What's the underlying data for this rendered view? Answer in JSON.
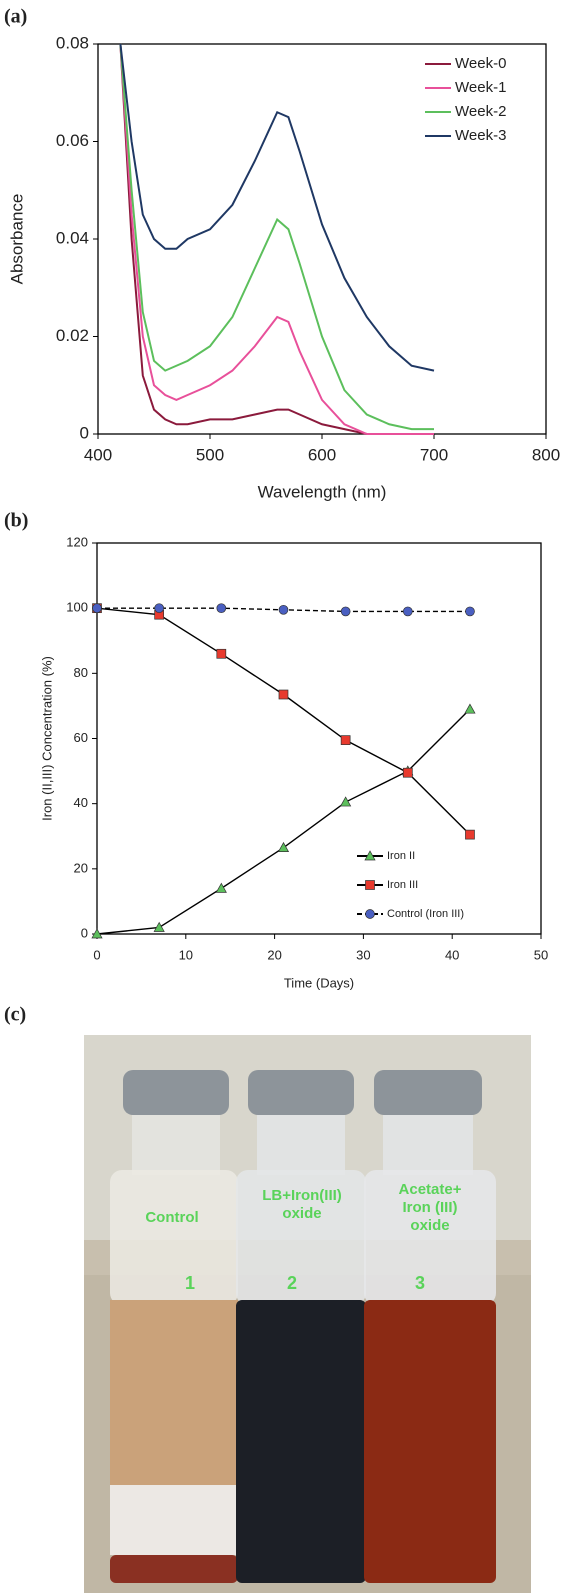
{
  "panel_labels": [
    "(a)",
    "(b)",
    "(c)"
  ],
  "chart_data": [
    {
      "type": "line",
      "xlabel": "Wavelength (nm)",
      "ylabel": "Absorbance",
      "x": [
        420,
        430,
        440,
        450,
        460,
        470,
        480,
        500,
        520,
        540,
        560,
        570,
        580,
        600,
        620,
        640,
        660,
        680,
        700
      ],
      "series": [
        {
          "name": "Week-0",
          "color": "#8b1a3c",
          "values": [
            0.08,
            0.04,
            0.012,
            0.005,
            0.003,
            0.002,
            0.002,
            0.003,
            0.003,
            0.004,
            0.005,
            0.005,
            0.004,
            0.002,
            0.001,
            0,
            0,
            0,
            0
          ]
        },
        {
          "name": "Week-1",
          "color": "#e8509a",
          "values": [
            0.08,
            0.045,
            0.02,
            0.01,
            0.008,
            0.007,
            0.008,
            0.01,
            0.013,
            0.018,
            0.024,
            0.023,
            0.017,
            0.007,
            0.002,
            0,
            0,
            0,
            0
          ]
        },
        {
          "name": "Week-2",
          "color": "#5cbf5c",
          "values": [
            0.08,
            0.05,
            0.025,
            0.015,
            0.013,
            0.014,
            0.015,
            0.018,
            0.024,
            0.034,
            0.044,
            0.042,
            0.035,
            0.02,
            0.009,
            0.004,
            0.002,
            0.001,
            0.001
          ]
        },
        {
          "name": "Week-3",
          "color": "#1f3864",
          "values": [
            0.08,
            0.06,
            0.045,
            0.04,
            0.038,
            0.038,
            0.04,
            0.042,
            0.047,
            0.056,
            0.066,
            0.065,
            0.058,
            0.043,
            0.032,
            0.024,
            0.018,
            0.014,
            0.013
          ]
        }
      ],
      "xlim": [
        400,
        800
      ],
      "xticks": [
        400,
        500,
        600,
        700,
        800
      ],
      "ylim": [
        0,
        0.08
      ],
      "yticks": [
        0,
        0.02,
        0.04,
        0.06,
        0.08
      ],
      "legend": "upper right"
    },
    {
      "type": "line",
      "xlabel": "Time (Days)",
      "ylabel": "Iron (II,III) Concentration (%)",
      "x": [
        0,
        7,
        14,
        21,
        28,
        35,
        42
      ],
      "series": [
        {
          "name": "Iron II",
          "color": "#5cbf5c",
          "marker": "triangle",
          "line_style": "solid",
          "values": [
            0,
            2,
            14,
            26.5,
            40.5,
            50,
            69
          ]
        },
        {
          "name": "Iron III",
          "color": "#e83a2e",
          "marker": "square",
          "line_style": "solid",
          "values": [
            100,
            98,
            86,
            73.5,
            59.5,
            49.5,
            30.5
          ]
        },
        {
          "name": "Control (Iron III)",
          "color": "#4a5fc1",
          "marker": "circle",
          "line_style": "dashed",
          "values": [
            100,
            100,
            100,
            99.5,
            99,
            99,
            99
          ]
        }
      ],
      "xlim": [
        0,
        50
      ],
      "xticks": [
        0,
        10,
        20,
        30,
        40,
        50
      ],
      "ylim": [
        0,
        120
      ],
      "yticks": [
        0,
        20,
        40,
        60,
        80,
        100,
        120
      ],
      "legend": "lower right"
    }
  ],
  "photo": {
    "vials": [
      {
        "lines": [
          "Control"
        ],
        "number": "1"
      },
      {
        "lines": [
          "LB+Iron(III)",
          "oxide"
        ],
        "number": "2"
      },
      {
        "lines": [
          "Acetate+",
          "Iron (III)",
          "oxide"
        ],
        "number": "3"
      }
    ]
  }
}
